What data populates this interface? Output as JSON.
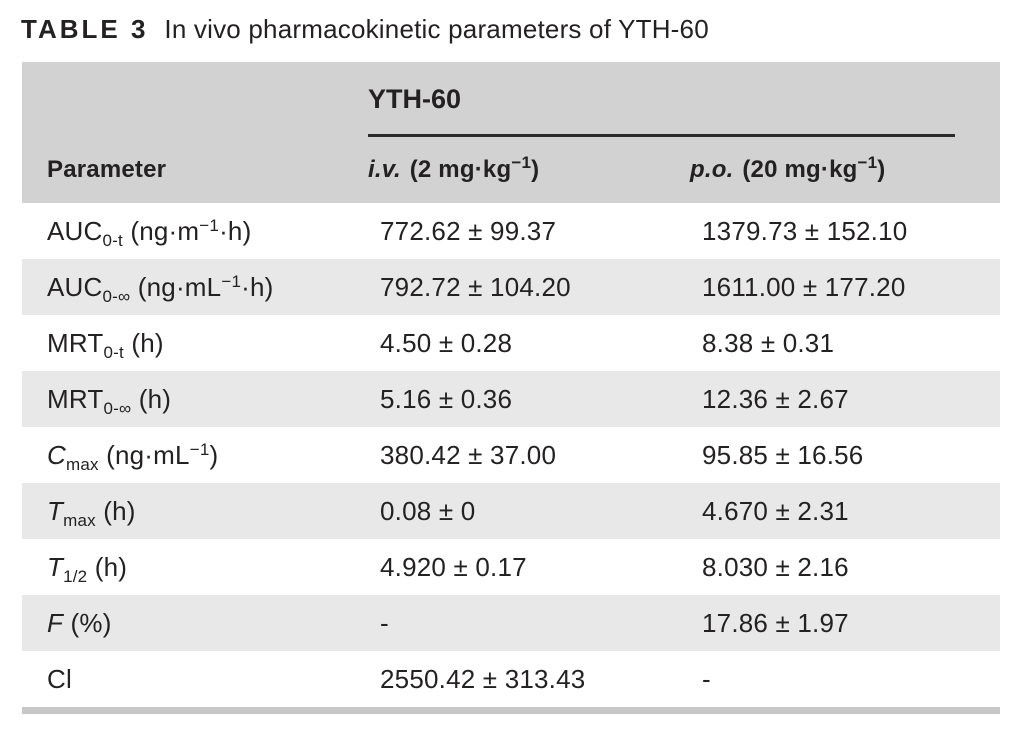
{
  "title": {
    "tag": "TABLE 3",
    "caption": "In vivo pharmacokinetic parameters of YTH-60"
  },
  "colors": {
    "header_bg": "#d2d2d2",
    "zebra_bg": "#e8e8e9",
    "bottom_bar": "#c7c7c8",
    "text": "#242122",
    "rule": "#2b2b2b"
  },
  "table": {
    "group_header": "YTH-60",
    "columns": {
      "parameter": "Parameter",
      "iv": [
        {
          "i": "i.v."
        },
        {
          "t": " (2 mg·kg"
        },
        {
          "sup": "−1"
        },
        {
          "t": ")"
        }
      ],
      "po": [
        {
          "i": "p.o."
        },
        {
          "t": " (20 mg·kg"
        },
        {
          "sup": "−1"
        },
        {
          "t": ")"
        }
      ]
    },
    "rows": [
      {
        "param": [
          {
            "t": "AUC"
          },
          {
            "sub": "0-t"
          },
          {
            "t": " (ng·m"
          },
          {
            "sup": "−1"
          },
          {
            "t": "·h)"
          }
        ],
        "iv": "772.62 ± 99.37",
        "po": "1379.73 ± 152.10"
      },
      {
        "param": [
          {
            "t": "AUC"
          },
          {
            "sub": "0-∞"
          },
          {
            "t": " (ng·mL"
          },
          {
            "sup": "−1"
          },
          {
            "t": "·h)"
          }
        ],
        "iv": "792.72 ± 104.20",
        "po": "1611.00 ± 177.20"
      },
      {
        "param": [
          {
            "t": "MRT"
          },
          {
            "sub": "0-t"
          },
          {
            "t": " (h)"
          }
        ],
        "iv": "4.50 ± 0.28",
        "po": "8.38 ± 0.31"
      },
      {
        "param": [
          {
            "t": "MRT"
          },
          {
            "sub": "0-∞"
          },
          {
            "t": " (h)"
          }
        ],
        "iv": "5.16 ± 0.36",
        "po": "12.36 ± 2.67"
      },
      {
        "param": [
          {
            "i": "C"
          },
          {
            "sub": "max"
          },
          {
            "t": " (ng·mL"
          },
          {
            "sup": "−1"
          },
          {
            "t": ")"
          }
        ],
        "iv": "380.42 ± 37.00",
        "po": "95.85 ± 16.56"
      },
      {
        "param": [
          {
            "i": "T"
          },
          {
            "sub": "max"
          },
          {
            "t": " (h)"
          }
        ],
        "iv": "0.08 ± 0",
        "po": "4.670 ± 2.31"
      },
      {
        "param": [
          {
            "i": "T"
          },
          {
            "sub": "1/2"
          },
          {
            "t": " (h)"
          }
        ],
        "iv": "4.920 ± 0.17",
        "po": "8.030 ± 2.16"
      },
      {
        "param": [
          {
            "i": "F"
          },
          {
            "t": " (%)"
          }
        ],
        "iv": "-",
        "po": "17.86 ± 1.97"
      },
      {
        "param": [
          {
            "t": "Cl"
          }
        ],
        "iv": "2550.42 ± 313.43",
        "po": "-"
      }
    ]
  }
}
